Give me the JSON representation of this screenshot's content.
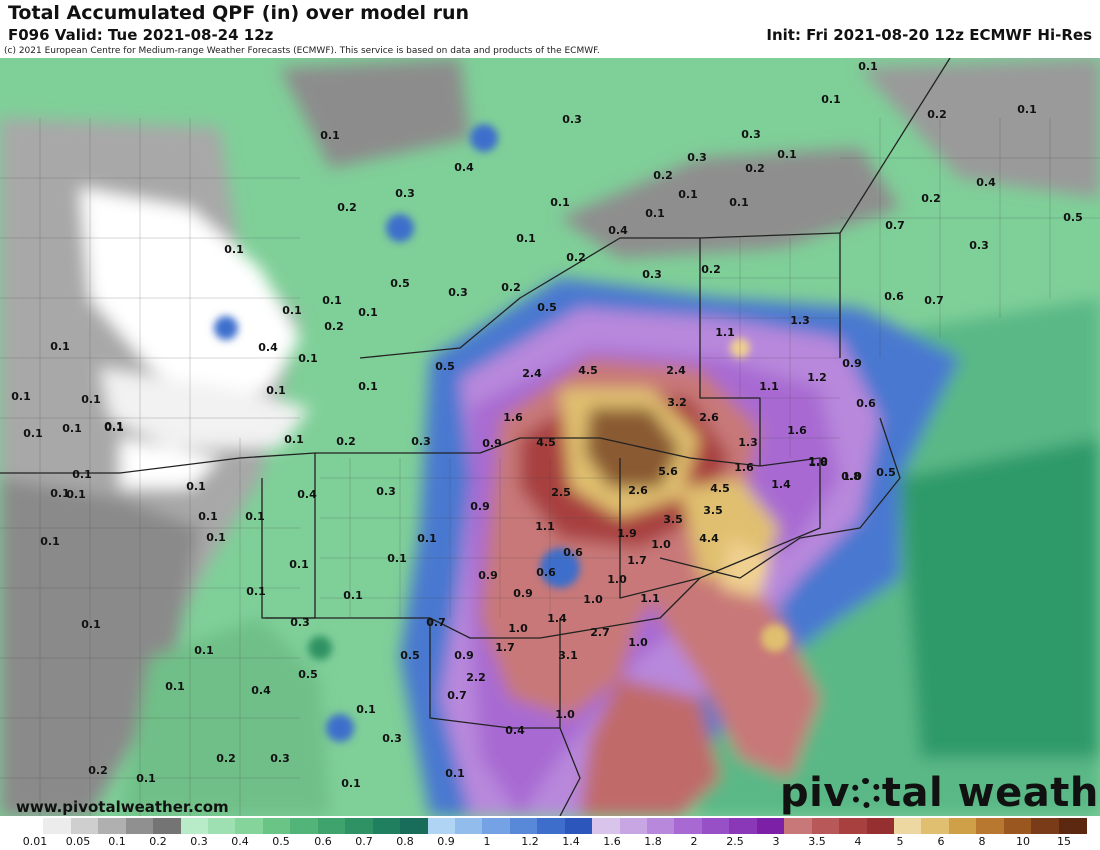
{
  "header": {
    "title": "Total Accumulated QPF (in) over model run",
    "valid": "F096 Valid: Tue 2021-08-24 12z",
    "init": "Init: Fri 2021-08-20 12z ECMWF Hi-Res",
    "copyright": "(c) 2021 European Centre for Medium-range Weather Forecasts (ECMWF). This service is based on data and products of the ECMWF."
  },
  "footer": {
    "website": "www.pivotalweather.com",
    "brand_part1": "piv",
    "brand_part2": "tal weather"
  },
  "colorbar": {
    "labels": [
      "0.01",
      "0.05",
      "0.1",
      "0.2",
      "0.3",
      "0.4",
      "0.5",
      "0.6",
      "0.7",
      "0.8",
      "0.9",
      "1",
      "1.2",
      "1.4",
      "1.6",
      "1.8",
      "2",
      "2.5",
      "3",
      "3.5",
      "4",
      "5",
      "6",
      "8",
      "10",
      "15"
    ],
    "colors": [
      "#ffffff",
      "#ececec",
      "#cfcfcf",
      "#b0b0b0",
      "#909090",
      "#747474",
      "#b8ecc8",
      "#9ee0b2",
      "#84d49c",
      "#6ac486",
      "#52b478",
      "#3fa36e",
      "#2e9264",
      "#1f7f5e",
      "#176d5a",
      "#b0d4f4",
      "#92bcec",
      "#74a2e4",
      "#5888d8",
      "#3e6ecc",
      "#2c56bc",
      "#d9c4ec",
      "#c8a6e4",
      "#b888dc",
      "#a86ad2",
      "#9850c6",
      "#8a38b8",
      "#7c20a8",
      "#c87878",
      "#b85858",
      "#a84040",
      "#963030",
      "#ecd8a0",
      "#e0c070",
      "#d0a048",
      "#b87830",
      "#9a5820",
      "#7a3c18",
      "#5c2810"
    ],
    "swatch_count": 39
  },
  "map": {
    "colors": {
      "ocean_light": "#8fd9a8",
      "ocean_deep": "#3aa06a",
      "land_base": "#7fcf98",
      "gray_dry": "#9a9a9a",
      "white_low": "#ffffff",
      "blue": "#3e6ecc",
      "purple": "#b888dc",
      "magenta": "#a86ad2",
      "red": "#c87878",
      "brown_red": "#a84040",
      "tan": "#e0c070",
      "brown": "#8a5a30"
    },
    "value_labels": [
      {
        "t": "0.1"
      },
      {
        "t": "0.3"
      },
      {
        "t": "0.3"
      },
      {
        "t": "0.1"
      },
      {
        "t": "0.1"
      },
      {
        "t": "0.4"
      },
      {
        "t": "0.2"
      },
      {
        "t": "0.3"
      },
      {
        "t": "0.2"
      },
      {
        "t": "0.1"
      },
      {
        "t": "0.3"
      },
      {
        "t": "0.2"
      },
      {
        "t": "0.1"
      },
      {
        "t": "0.1"
      },
      {
        "t": "0.2"
      },
      {
        "t": "0.2"
      },
      {
        "t": "0.1"
      },
      {
        "t": "0.1"
      },
      {
        "t": "0.1"
      },
      {
        "t": "0.3"
      },
      {
        "t": "0.2"
      },
      {
        "t": "0.1"
      },
      {
        "t": "0.4"
      },
      {
        "t": "0.2"
      },
      {
        "t": "0.7"
      },
      {
        "t": "0.5"
      },
      {
        "t": "0.3"
      },
      {
        "t": "0.6"
      },
      {
        "t": "0.7"
      },
      {
        "t": "0.4"
      },
      {
        "t": "0.1"
      },
      {
        "t": "0.5"
      },
      {
        "t": "0.3"
      },
      {
        "t": "0.2"
      },
      {
        "t": "0.5"
      },
      {
        "t": "0.1"
      },
      {
        "t": "0.1"
      },
      {
        "t": "0.2"
      },
      {
        "t": "0.1"
      },
      {
        "t": "0.4"
      },
      {
        "t": "0.1"
      },
      {
        "t": "0.1"
      },
      {
        "t": "0.1"
      },
      {
        "t": "0.1"
      },
      {
        "t": "0.1"
      },
      {
        "t": "0.1"
      },
      {
        "t": "0.1"
      },
      {
        "t": "0.1"
      },
      {
        "t": "0.5"
      },
      {
        "t": "2.4"
      },
      {
        "t": "4.5"
      },
      {
        "t": "2.4"
      },
      {
        "t": "1.1"
      },
      {
        "t": "1.3"
      },
      {
        "t": "1.1"
      },
      {
        "t": "1.2"
      },
      {
        "t": "0.9"
      },
      {
        "t": "3.2"
      },
      {
        "t": "2.6"
      },
      {
        "t": "1.6"
      },
      {
        "t": "0.6"
      },
      {
        "t": "1.6"
      },
      {
        "t": "4.5"
      },
      {
        "t": "0.9"
      },
      {
        "t": "0.1"
      },
      {
        "t": "0.2"
      },
      {
        "t": "0.3"
      },
      {
        "t": "1.3"
      },
      {
        "t": "1.6"
      },
      {
        "t": "1.0"
      },
      {
        "t": "5.6"
      },
      {
        "t": "1.8"
      },
      {
        "t": "1.0"
      },
      {
        "t": "0.8"
      },
      {
        "t": "0.5"
      },
      {
        "t": "4.5"
      },
      {
        "t": "1.4"
      },
      {
        "t": "2.5"
      },
      {
        "t": "2.6"
      },
      {
        "t": "0.4"
      },
      {
        "t": "0.3"
      },
      {
        "t": "0.9"
      },
      {
        "t": "3.5"
      },
      {
        "t": "3.5"
      },
      {
        "t": "1.1"
      },
      {
        "t": "1.9"
      },
      {
        "t": "4.4"
      },
      {
        "t": "0.6"
      },
      {
        "t": "1.0"
      },
      {
        "t": "0.1"
      },
      {
        "t": "0.1"
      },
      {
        "t": "0.9"
      },
      {
        "t": "0.6"
      },
      {
        "t": "1.7"
      },
      {
        "t": "1.0"
      },
      {
        "t": "0.9"
      },
      {
        "t": "1.0"
      },
      {
        "t": "1.1"
      },
      {
        "t": "0.1"
      },
      {
        "t": "0.1"
      },
      {
        "t": "0.3"
      },
      {
        "t": "0.7"
      },
      {
        "t": "1.0"
      },
      {
        "t": "1.4"
      },
      {
        "t": "2.7"
      },
      {
        "t": "1.0"
      },
      {
        "t": "0.5"
      },
      {
        "t": "0.9"
      },
      {
        "t": "1.7"
      },
      {
        "t": "3.1"
      },
      {
        "t": "0.1"
      },
      {
        "t": "0.5"
      },
      {
        "t": "2.2"
      },
      {
        "t": "0.4"
      },
      {
        "t": "0.7"
      },
      {
        "t": "0.1"
      },
      {
        "t": "1.0"
      },
      {
        "t": "0.1"
      },
      {
        "t": "0.3"
      },
      {
        "t": "0.4"
      },
      {
        "t": "0.2"
      },
      {
        "t": "0.3"
      },
      {
        "t": "0.1"
      },
      {
        "t": "0.1"
      },
      {
        "t": "0.2"
      },
      {
        "t": "0.1"
      },
      {
        "t": "0.1"
      },
      {
        "t": "0.1"
      },
      {
        "t": "0.1"
      },
      {
        "t": "0.1"
      },
      {
        "t": "0.1"
      },
      {
        "t": "0.1"
      },
      {
        "t": "0.1"
      },
      {
        "t": "0.1"
      },
      {
        "t": "0.1"
      },
      {
        "t": "0.1"
      },
      {
        "t": "0.1"
      },
      {
        "t": "0.1"
      }
    ]
  }
}
